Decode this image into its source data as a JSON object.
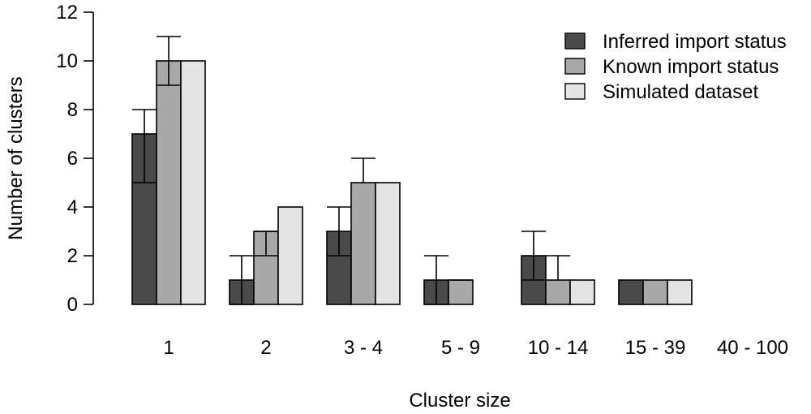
{
  "chart_data": {
    "type": "bar",
    "xlabel": "Cluster size",
    "ylabel": "Number of clusters",
    "ylim": [
      0,
      12
    ],
    "yticks": [
      0,
      2,
      4,
      6,
      8,
      10,
      12
    ],
    "grid": false,
    "legend_position": "top-right",
    "categories": [
      "1",
      "2",
      "3 - 4",
      "5 - 9",
      "10 - 14",
      "15 - 39",
      "40 - 100"
    ],
    "series": [
      {
        "name": "Inferred import status",
        "color": "#4a4a4a",
        "values": [
          7,
          1,
          3,
          1,
          2,
          1,
          0
        ],
        "error_low": [
          5,
          0,
          2,
          0,
          1,
          null,
          null
        ],
        "error_high": [
          8,
          2,
          4,
          2,
          3,
          null,
          null
        ]
      },
      {
        "name": "Known import status",
        "color": "#a8a8a8",
        "values": [
          10,
          3,
          5,
          1,
          1,
          1,
          0
        ],
        "error_low": [
          9,
          2,
          null,
          null,
          null,
          null,
          null
        ],
        "error_high": [
          11,
          3,
          6,
          1,
          2,
          null,
          null
        ]
      },
      {
        "name": "Simulated dataset",
        "color": "#e4e4e4",
        "values": [
          10,
          4,
          5,
          0,
          1,
          1,
          0
        ],
        "error_low": [
          null,
          null,
          null,
          null,
          null,
          null,
          null
        ],
        "error_high": [
          null,
          null,
          null,
          null,
          null,
          null,
          null
        ]
      }
    ]
  }
}
